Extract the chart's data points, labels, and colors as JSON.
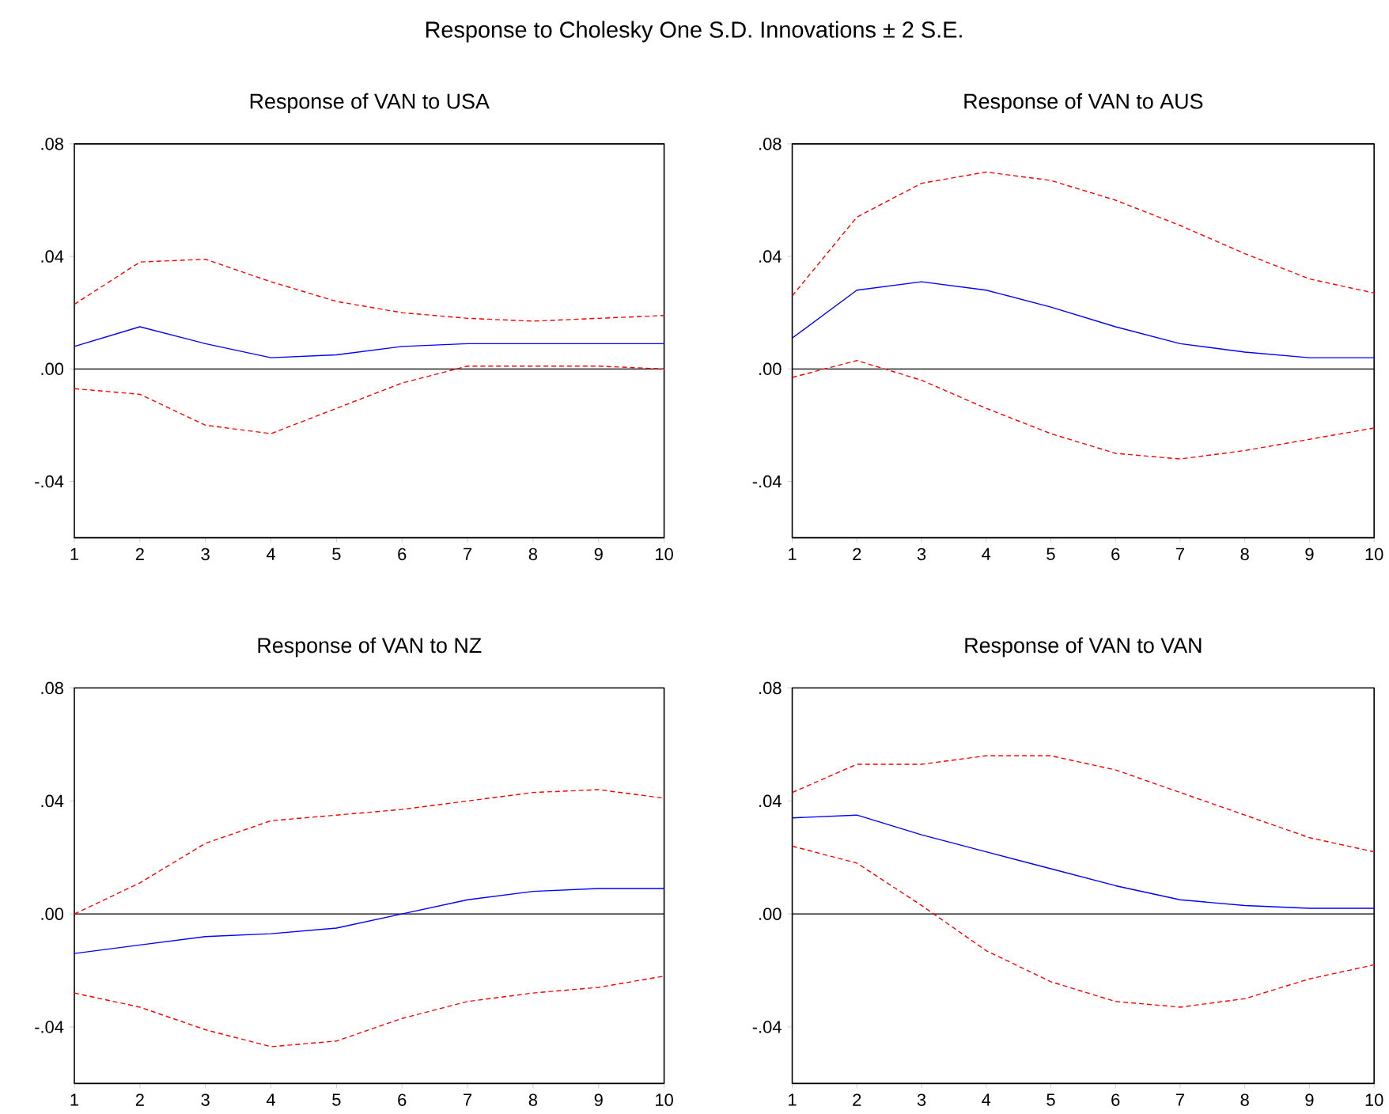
{
  "chart_data": [
    {
      "type": "line",
      "title": "Response of VAN to USA",
      "annotations": [
        "Response to Cholesky One S.D. Innovations ± 2 S.E."
      ],
      "x": [
        1,
        2,
        3,
        4,
        5,
        6,
        7,
        8,
        9,
        10
      ],
      "xlim": [
        1,
        10
      ],
      "xticks": [
        1,
        2,
        3,
        4,
        5,
        6,
        7,
        8,
        9,
        10
      ],
      "ylim": [
        -0.06,
        0.08
      ],
      "yticks": [
        {
          "value": -0.04,
          "label": "-.04"
        },
        {
          "value": 0,
          "label": ".00"
        },
        {
          "value": 0.04,
          "label": ".04"
        },
        {
          "value": 0.08,
          "label": ".08"
        }
      ],
      "ref_lines": [
        {
          "axis": "y",
          "value": 0,
          "color": "#000000"
        }
      ],
      "series": [
        {
          "color": "#0000ff",
          "line_style": "solid",
          "values": [
            0.008,
            0.015,
            0.009,
            0.004,
            0.005,
            0.008,
            0.009,
            0.009,
            0.009,
            0.009
          ]
        },
        {
          "color": "#ff0000",
          "line_style": "dashed",
          "values": [
            0.023,
            0.038,
            0.039,
            0.031,
            0.024,
            0.02,
            0.018,
            0.017,
            0.018,
            0.019
          ]
        },
        {
          "color": "#ff0000",
          "line_style": "dashed",
          "values": [
            -0.007,
            -0.009,
            -0.02,
            -0.023,
            -0.014,
            -0.005,
            0.001,
            0.001,
            0.001,
            0.0
          ]
        }
      ]
    },
    {
      "type": "line",
      "title": "Response of VAN to AUS",
      "x": [
        1,
        2,
        3,
        4,
        5,
        6,
        7,
        8,
        9,
        10
      ],
      "xlim": [
        1,
        10
      ],
      "xticks": [
        1,
        2,
        3,
        4,
        5,
        6,
        7,
        8,
        9,
        10
      ],
      "ylim": [
        -0.06,
        0.08
      ],
      "yticks": [
        {
          "value": -0.04,
          "label": "-.04"
        },
        {
          "value": 0,
          "label": ".00"
        },
        {
          "value": 0.04,
          "label": ".04"
        },
        {
          "value": 0.08,
          "label": ".08"
        }
      ],
      "ref_lines": [
        {
          "axis": "y",
          "value": 0,
          "color": "#000000"
        }
      ],
      "series": [
        {
          "color": "#0000ff",
          "line_style": "solid",
          "values": [
            0.011,
            0.028,
            0.031,
            0.028,
            0.022,
            0.015,
            0.009,
            0.006,
            0.004,
            0.004
          ]
        },
        {
          "color": "#ff0000",
          "line_style": "dashed",
          "values": [
            0.026,
            0.054,
            0.066,
            0.07,
            0.067,
            0.06,
            0.051,
            0.041,
            0.032,
            0.027
          ]
        },
        {
          "color": "#ff0000",
          "line_style": "dashed",
          "values": [
            -0.003,
            0.003,
            -0.004,
            -0.014,
            -0.023,
            -0.03,
            -0.032,
            -0.029,
            -0.025,
            -0.021
          ]
        }
      ]
    },
    {
      "type": "line",
      "title": "Response of VAN to NZ",
      "x": [
        1,
        2,
        3,
        4,
        5,
        6,
        7,
        8,
        9,
        10
      ],
      "xlim": [
        1,
        10
      ],
      "xticks": [
        1,
        2,
        3,
        4,
        5,
        6,
        7,
        8,
        9,
        10
      ],
      "ylim": [
        -0.06,
        0.08
      ],
      "yticks": [
        {
          "value": -0.04,
          "label": "-.04"
        },
        {
          "value": 0,
          "label": ".00"
        },
        {
          "value": 0.04,
          "label": ".04"
        },
        {
          "value": 0.08,
          "label": ".08"
        }
      ],
      "ref_lines": [
        {
          "axis": "y",
          "value": 0,
          "color": "#000000"
        }
      ],
      "series": [
        {
          "color": "#0000ff",
          "line_style": "solid",
          "values": [
            -0.014,
            -0.011,
            -0.008,
            -0.007,
            -0.005,
            0.0,
            0.005,
            0.008,
            0.009,
            0.009
          ]
        },
        {
          "color": "#ff0000",
          "line_style": "dashed",
          "values": [
            0.0,
            0.011,
            0.025,
            0.033,
            0.035,
            0.037,
            0.04,
            0.043,
            0.044,
            0.041
          ]
        },
        {
          "color": "#ff0000",
          "line_style": "dashed",
          "values": [
            -0.028,
            -0.033,
            -0.041,
            -0.047,
            -0.045,
            -0.037,
            -0.031,
            -0.028,
            -0.026,
            -0.022
          ]
        }
      ]
    },
    {
      "type": "line",
      "title": "Response of VAN to VAN",
      "x": [
        1,
        2,
        3,
        4,
        5,
        6,
        7,
        8,
        9,
        10
      ],
      "xlim": [
        1,
        10
      ],
      "xticks": [
        1,
        2,
        3,
        4,
        5,
        6,
        7,
        8,
        9,
        10
      ],
      "ylim": [
        -0.06,
        0.08
      ],
      "yticks": [
        {
          "value": -0.04,
          "label": "-.04"
        },
        {
          "value": 0,
          "label": ".00"
        },
        {
          "value": 0.04,
          "label": ".04"
        },
        {
          "value": 0.08,
          "label": ".08"
        }
      ],
      "ref_lines": [
        {
          "axis": "y",
          "value": 0,
          "color": "#000000"
        }
      ],
      "series": [
        {
          "color": "#0000ff",
          "line_style": "solid",
          "values": [
            0.034,
            0.035,
            0.028,
            0.022,
            0.016,
            0.01,
            0.005,
            0.003,
            0.002,
            0.002
          ]
        },
        {
          "color": "#ff0000",
          "line_style": "dashed",
          "values": [
            0.043,
            0.053,
            0.053,
            0.056,
            0.056,
            0.051,
            0.043,
            0.035,
            0.027,
            0.022
          ]
        },
        {
          "color": "#ff0000",
          "line_style": "dashed",
          "values": [
            0.024,
            0.018,
            0.003,
            -0.013,
            -0.024,
            -0.031,
            -0.033,
            -0.03,
            -0.023,
            -0.018
          ]
        }
      ]
    }
  ]
}
